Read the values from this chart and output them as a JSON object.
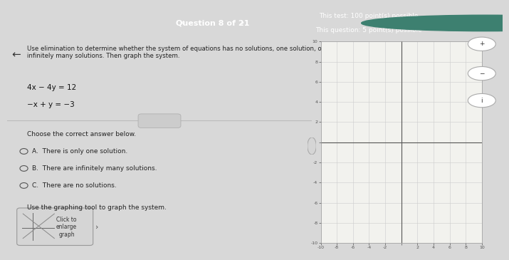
{
  "title_bar_text": "Question 8 of 21",
  "top_right_text1": "This test: 100 point(s) possible",
  "top_right_text2": "This question: 5 point(s) possible",
  "header_bg": "#2d6b5e",
  "main_bg": "#d8d8d8",
  "content_bg": "#ececec",
  "question_text": "Use elimination to determine whether the system of equations has no solutions, one solution, or\ninfinitely many solutions. Then graph the system.",
  "eq1": "4x − 4y = 12",
  "eq2": "−x + y = −3",
  "choose_text": "Choose the correct answer below.",
  "optA": "A.  There is only one solution.",
  "optB": "B.  There are infinitely many solutions.",
  "optC": "C.  There are no solutions.",
  "graph_text": "Use the graphing tool to graph the system.",
  "btn_text": "Click to\nenlarge\ngraph",
  "graph_xlim": [
    -10,
    10
  ],
  "graph_ylim": [
    -10,
    10
  ],
  "graph_xticks": [
    -10,
    -8,
    -6,
    -4,
    -2,
    0,
    2,
    4,
    6,
    8,
    10
  ],
  "graph_yticks": [
    -10,
    -8,
    -6,
    -4,
    -2,
    0,
    2,
    4,
    6,
    8,
    10
  ],
  "grid_color": "#cccccc",
  "axis_color": "#555555",
  "tick_label_color": "#555555",
  "back_arrow": "←",
  "nav_left": "‹",
  "nav_right": "›"
}
